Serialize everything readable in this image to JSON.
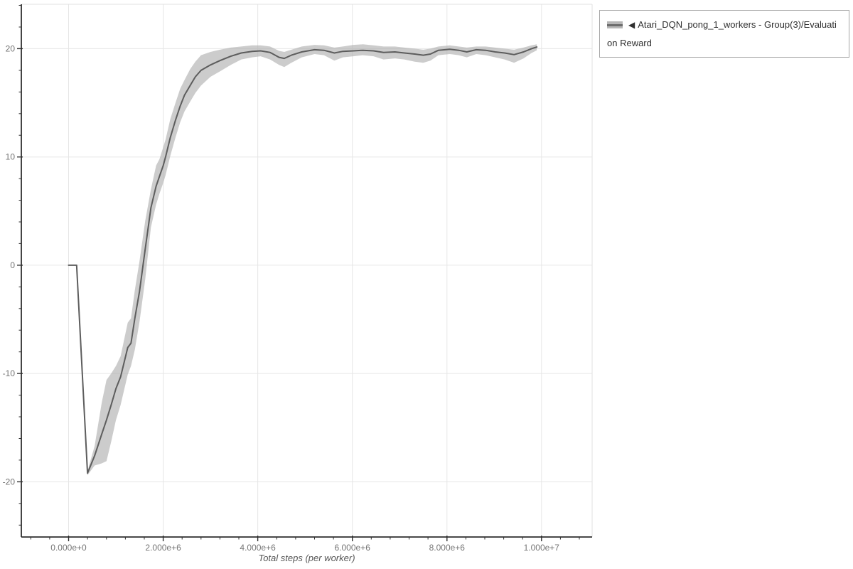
{
  "colors": {
    "background": "#ffffff",
    "grid": "#e6e6e6",
    "plot_border": "#e2e2e2",
    "axis": "#2f2f2f",
    "tick_label": "#757575",
    "axis_title": "#555555",
    "line": "#5d5d5d",
    "band": "#b0b0b0",
    "legend_border": "#a6a6a6",
    "legend_text": "#2f2f2f"
  },
  "legend": {
    "items": [
      {
        "marker": "◀",
        "label": "Atari_DQN_pong_1_workers - Group(3)/Evaluation Reward"
      }
    ]
  },
  "chart_data": {
    "type": "line",
    "title": "",
    "xlabel": "Total steps (per worker)",
    "ylabel": "",
    "grid": true,
    "legend_position": "top-right-outside",
    "xlim": [
      -1000000,
      11070000
    ],
    "ylim": [
      -25.1,
      24.1
    ],
    "x_major_ticks": [
      0,
      2000000,
      4000000,
      6000000,
      8000000,
      10000000
    ],
    "x_tick_labels": [
      "0.000e+0",
      "2.000e+6",
      "4.000e+6",
      "6.000e+6",
      "8.000e+6",
      "1.000e+7"
    ],
    "x_minor_step": 400000,
    "y_major_ticks": [
      -20,
      -10,
      0,
      10,
      20
    ],
    "y_tick_labels": [
      "-20",
      "-10",
      "0",
      "10",
      "20"
    ],
    "y_minor_step": 2,
    "series": [
      {
        "name": "◀ Atari_DQN_pong_1_workers - Group(3)/Evaluation Reward",
        "x": [
          0,
          170000,
          400000,
          550000,
          700000,
          800000,
          900000,
          1000000,
          1100000,
          1250000,
          1320000,
          1400000,
          1500000,
          1620000,
          1740000,
          1850000,
          1920000,
          2000000,
          2050000,
          2150000,
          2260000,
          2360000,
          2450000,
          2570000,
          2680000,
          2800000,
          3000000,
          3200000,
          3430000,
          3650000,
          3880000,
          4060000,
          4260000,
          4450000,
          4560000,
          4710000,
          4930000,
          5200000,
          5400000,
          5620000,
          5800000,
          6020000,
          6220000,
          6450000,
          6660000,
          6900000,
          7100000,
          7320000,
          7500000,
          7650000,
          7820000,
          8060000,
          8250000,
          8420000,
          8620000,
          8820000,
          9020000,
          9220000,
          9420000,
          9620000,
          9790000,
          9900000
        ],
        "mean": [
          0,
          0,
          -19.2,
          -17.6,
          -15.6,
          -14.3,
          -12.9,
          -11.4,
          -10.3,
          -7.6,
          -7.2,
          -4.9,
          -2.4,
          1.5,
          5.3,
          7.3,
          8.2,
          9.2,
          10.0,
          11.8,
          13.4,
          14.7,
          15.7,
          16.6,
          17.4,
          18.0,
          18.5,
          18.9,
          19.3,
          19.6,
          19.75,
          19.8,
          19.65,
          19.2,
          19.1,
          19.4,
          19.7,
          19.9,
          19.85,
          19.6,
          19.75,
          19.8,
          19.85,
          19.8,
          19.65,
          19.7,
          19.6,
          19.5,
          19.4,
          19.5,
          19.85,
          19.95,
          19.85,
          19.7,
          19.9,
          19.85,
          19.7,
          19.6,
          19.45,
          19.7,
          20.0,
          20.15
        ],
        "lower": [
          null,
          null,
          -19.4,
          -18.5,
          -18.3,
          -18.1,
          -16.3,
          -14.3,
          -12.9,
          -10.1,
          -9.3,
          -7.8,
          -5.2,
          -1.3,
          3.5,
          5.6,
          6.6,
          7.6,
          8.3,
          10.1,
          11.8,
          13.2,
          14.2,
          15.1,
          15.9,
          16.6,
          17.4,
          17.9,
          18.5,
          19.0,
          19.2,
          19.3,
          19.0,
          18.5,
          18.3,
          18.7,
          19.2,
          19.5,
          19.4,
          18.9,
          19.2,
          19.3,
          19.4,
          19.3,
          19.0,
          19.1,
          19.0,
          18.8,
          18.7,
          18.9,
          19.4,
          19.5,
          19.4,
          19.2,
          19.5,
          19.4,
          19.2,
          19.0,
          18.7,
          19.1,
          19.6,
          19.85
        ],
        "upper": [
          null,
          null,
          -19.0,
          -16.7,
          -12.7,
          -10.6,
          -10.0,
          -9.3,
          -8.4,
          -5.3,
          -4.9,
          -2.3,
          0.4,
          4.1,
          7.0,
          9.2,
          9.8,
          10.9,
          11.6,
          13.5,
          15.0,
          16.3,
          17.1,
          18.1,
          18.8,
          19.4,
          19.7,
          19.9,
          20.1,
          20.2,
          20.3,
          20.3,
          20.2,
          19.8,
          19.7,
          19.9,
          20.2,
          20.35,
          20.3,
          20.1,
          20.2,
          20.35,
          20.4,
          20.3,
          20.2,
          20.2,
          20.1,
          20.0,
          19.9,
          20.0,
          20.2,
          20.3,
          20.2,
          20.1,
          20.2,
          20.2,
          20.1,
          20.0,
          19.9,
          20.1,
          20.3,
          20.4
        ]
      }
    ]
  }
}
